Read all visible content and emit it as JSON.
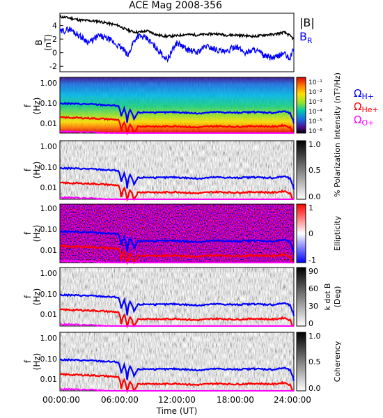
{
  "title": "ACE Mag 2008-356",
  "xlabel": "Time (UT)",
  "x_ticks": [
    "00:00:00",
    "06:00:00",
    "12:00:00",
    "18:00:00",
    "24:00:00"
  ],
  "chart_data": [
    {
      "type": "line",
      "panel": "field",
      "ylabel_line1": "B",
      "ylabel_line2": "(nT)",
      "y_ticks": [
        "4",
        "2",
        "0",
        "-2"
      ],
      "ylim": [
        -2.8,
        5.8
      ],
      "x_hours": [
        0,
        1,
        2,
        3,
        4,
        5,
        6,
        6.5,
        7,
        7.5,
        8,
        9,
        10,
        11,
        12,
        13,
        14,
        15,
        16,
        17,
        18,
        19,
        20,
        21,
        22,
        23,
        23.5,
        24
      ],
      "series": [
        {
          "name": "|B|",
          "color": "#000000",
          "values": [
            5.3,
            5.1,
            4.8,
            4.7,
            4.6,
            4.3,
            4.0,
            3.6,
            3.3,
            3.1,
            3.0,
            3.2,
            2.6,
            2.4,
            2.5,
            2.7,
            2.6,
            2.7,
            2.8,
            2.6,
            2.6,
            2.5,
            2.4,
            2.6,
            2.7,
            3.0,
            2.6,
            2.0
          ]
        },
        {
          "name": "B_R",
          "label_main": "B",
          "label_sub": "R",
          "color": "#0000ff",
          "values": [
            3.0,
            3.5,
            2.5,
            1.5,
            2.5,
            2.0,
            1.0,
            0.5,
            -0.5,
            1.5,
            2.5,
            2.0,
            0.5,
            -1.0,
            1.5,
            0.5,
            0.0,
            1.0,
            0.5,
            0.0,
            1.0,
            0.0,
            0.5,
            -0.5,
            -0.8,
            0.0,
            -1.0,
            0.5
          ]
        }
      ]
    },
    {
      "type": "heatmap",
      "panel": "intensity",
      "ylabel_line1": "f",
      "ylabel_line2": "(Hz)",
      "y_ticks": [
        "1.00",
        "0.10",
        "0.01"
      ],
      "colorbar_label": "Intensity (nT²/Hz)",
      "colorbar_ticks": [
        "10⁻¹",
        "10⁻²",
        "10⁻³",
        "10⁻⁴",
        "10⁻⁵",
        "10⁻⁶"
      ],
      "colors": [
        "#000000",
        "#5a0078",
        "#1010c8",
        "#00a0ff",
        "#00d080",
        "#a0f000",
        "#ffe000",
        "#ff6000",
        "#e00000"
      ]
    },
    {
      "type": "heatmap",
      "panel": "polarization",
      "ylabel_line1": "f",
      "ylabel_line2": "(Hz)",
      "y_ticks": [
        "1.00",
        "0.10",
        "0.01"
      ],
      "colorbar_label": "% Polarization",
      "colorbar_ticks": [
        "1.0",
        "0.5",
        "0.0"
      ]
    },
    {
      "type": "heatmap",
      "panel": "ellipticity",
      "ylabel_line1": "f",
      "ylabel_line2": "(Hz)",
      "y_ticks": [
        "1.00",
        "0.10",
        "0.01"
      ],
      "colorbar_label": "Ellipticity",
      "colorbar_ticks": [
        "1",
        "0",
        "-1"
      ]
    },
    {
      "type": "heatmap",
      "panel": "kdotb",
      "ylabel_line1": "f",
      "ylabel_line2": "(Hz)",
      "y_ticks": [
        "1.00",
        "0.10",
        "0.01"
      ],
      "colorbar_label_line1": "k dot B",
      "colorbar_label_line2": "(Deg)",
      "colorbar_ticks": [
        "90",
        "60",
        "30",
        "0"
      ]
    },
    {
      "type": "heatmap",
      "panel": "coherency",
      "ylabel_line1": "f",
      "ylabel_line2": "(Hz)",
      "y_ticks": [
        "1.00",
        "0.10",
        "0.01"
      ],
      "colorbar_label": "Coherency",
      "colorbar_ticks": [
        "1.0",
        "0.5",
        "0.0"
      ]
    }
  ],
  "gyrofrequency": {
    "x_hours": [
      0,
      3,
      6,
      6.3,
      6.6,
      6.9,
      7.2,
      7.6,
      8,
      9,
      10,
      12,
      14,
      16,
      18,
      20,
      22,
      23,
      23.6,
      24
    ],
    "h_plus_hz": [
      0.075,
      0.07,
      0.06,
      0.02,
      0.045,
      0.012,
      0.04,
      0.015,
      0.03,
      0.032,
      0.03,
      0.032,
      0.028,
      0.032,
      0.03,
      0.032,
      0.03,
      0.035,
      0.028,
      0.01
    ],
    "labels": [
      {
        "main": "Ω",
        "sub": "H+",
        "color": "#0000ff"
      },
      {
        "main": "Ω",
        "sub": "He+",
        "color": "#ff0000"
      },
      {
        "main": "Ω",
        "sub": "O+",
        "color": "#ff00ff"
      }
    ]
  }
}
